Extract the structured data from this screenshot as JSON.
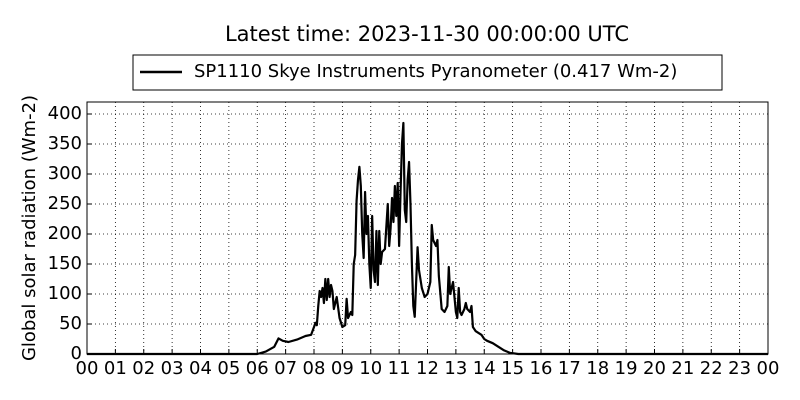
{
  "chart_data": {
    "type": "line",
    "title": "Latest time: 2023-11-30 00:00:00 UTC",
    "y_label": "Global solar radiation (Wm-2)",
    "x": [
      0,
      6.0,
      6.3,
      6.6,
      6.75,
      6.9,
      7.1,
      7.4,
      7.7,
      7.9,
      8.0,
      8.05,
      8.1,
      8.15,
      8.2,
      8.25,
      8.3,
      8.35,
      8.4,
      8.45,
      8.5,
      8.55,
      8.6,
      8.65,
      8.7,
      8.8,
      8.9,
      9.0,
      9.1,
      9.15,
      9.2,
      9.3,
      9.35,
      9.4,
      9.45,
      9.5,
      9.55,
      9.6,
      9.65,
      9.7,
      9.75,
      9.8,
      9.85,
      9.9,
      9.95,
      10.0,
      10.05,
      10.1,
      10.15,
      10.2,
      10.25,
      10.3,
      10.35,
      10.4,
      10.5,
      10.6,
      10.65,
      10.7,
      10.75,
      10.8,
      10.85,
      10.9,
      10.95,
      11.0,
      11.05,
      11.1,
      11.15,
      11.2,
      11.25,
      11.3,
      11.35,
      11.4,
      11.45,
      11.5,
      11.55,
      11.6,
      11.65,
      11.7,
      11.8,
      11.9,
      12.0,
      12.1,
      12.15,
      12.2,
      12.3,
      12.35,
      12.4,
      12.5,
      12.6,
      12.7,
      12.75,
      12.8,
      12.9,
      13.0,
      13.05,
      13.1,
      13.15,
      13.2,
      13.3,
      13.35,
      13.4,
      13.5,
      13.55,
      13.6,
      13.7,
      13.9,
      14.0,
      14.1,
      14.3,
      14.5,
      14.7,
      14.9,
      15.2,
      24
    ],
    "series": [
      {
        "name": "SP1110 Skye Instruments Pyranometer (0.417 Wm-2)",
        "color": "#000000",
        "values": [
          0,
          0,
          4,
          12,
          26,
          22,
          20,
          24,
          30,
          32,
          45,
          52,
          48,
          80,
          105,
          95,
          110,
          85,
          125,
          90,
          125,
          95,
          115,
          105,
          75,
          95,
          60,
          45,
          48,
          92,
          60,
          70,
          65,
          150,
          165,
          255,
          290,
          312,
          280,
          200,
          160,
          270,
          200,
          230,
          150,
          110,
          230,
          140,
          120,
          205,
          115,
          205,
          150,
          170,
          175,
          250,
          180,
          210,
          260,
          220,
          280,
          230,
          285,
          180,
          270,
          350,
          385,
          240,
          220,
          290,
          320,
          250,
          150,
          80,
          62,
          120,
          178,
          140,
          110,
          95,
          100,
          120,
          215,
          190,
          180,
          190,
          130,
          75,
          70,
          80,
          145,
          100,
          120,
          70,
          60,
          110,
          70,
          65,
          75,
          85,
          75,
          70,
          80,
          45,
          38,
          32,
          25,
          22,
          18,
          12,
          6,
          2,
          0,
          0
        ]
      }
    ],
    "xlim": [
      0,
      24
    ],
    "ylim": [
      0,
      420
    ],
    "xticks": [
      {
        "value": 0,
        "label": "00"
      },
      {
        "value": 1,
        "label": "01"
      },
      {
        "value": 2,
        "label": "02"
      },
      {
        "value": 3,
        "label": "03"
      },
      {
        "value": 4,
        "label": "04"
      },
      {
        "value": 5,
        "label": "05"
      },
      {
        "value": 6,
        "label": "06"
      },
      {
        "value": 7,
        "label": "07"
      },
      {
        "value": 8,
        "label": "08"
      },
      {
        "value": 9,
        "label": "09"
      },
      10,
      11,
      12,
      13,
      14,
      15,
      16,
      17,
      18,
      19,
      20,
      21,
      22,
      23,
      {
        "value": 24,
        "label": "00"
      }
    ],
    "yticks": [
      0,
      50,
      100,
      150,
      200,
      250,
      300,
      350,
      400
    ],
    "grid": true
  }
}
